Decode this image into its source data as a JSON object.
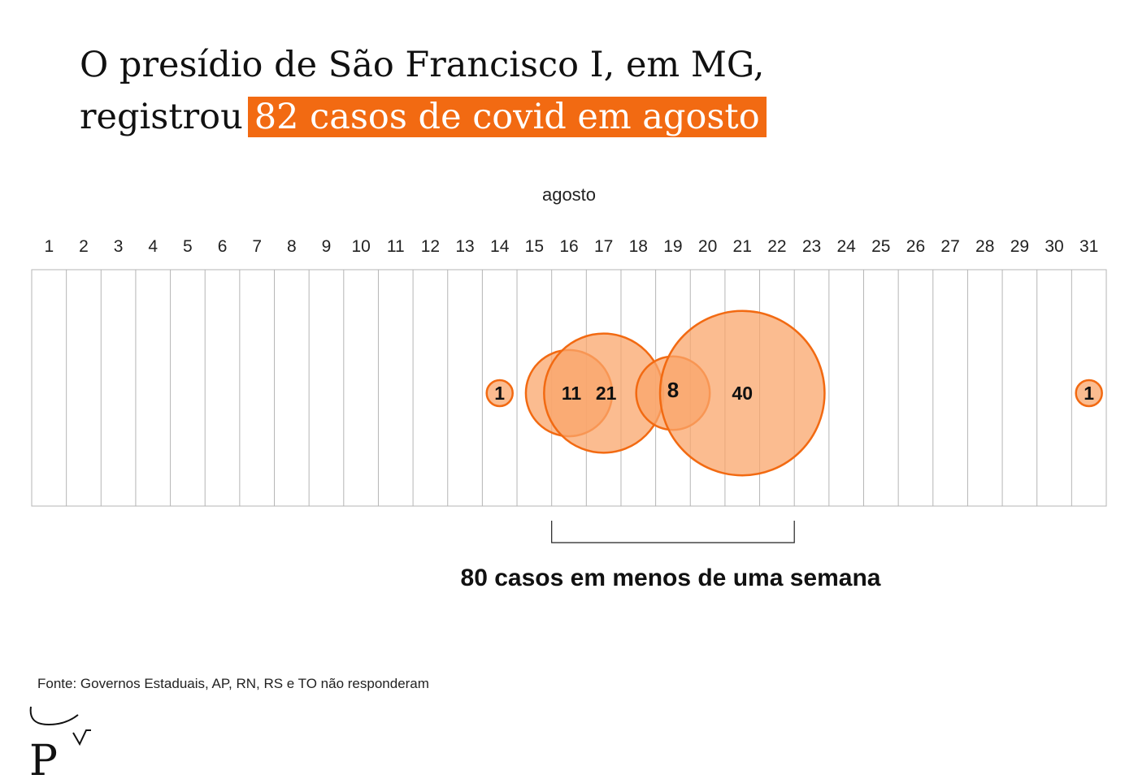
{
  "header": {
    "title_line1": "O presídio de São Francisco I, em MG,",
    "title_line2_prefix": "registrou",
    "title_highlight": "82 casos de covid em agosto"
  },
  "chart_data": {
    "type": "bubble-timeline",
    "month_label": "agosto",
    "days": [
      1,
      2,
      3,
      4,
      5,
      6,
      7,
      8,
      9,
      10,
      11,
      12,
      13,
      14,
      15,
      16,
      17,
      18,
      19,
      20,
      21,
      22,
      23,
      24,
      25,
      26,
      27,
      28,
      29,
      30,
      31
    ],
    "points": [
      {
        "day": 14,
        "cases": 1
      },
      {
        "day": 16,
        "cases": 11
      },
      {
        "day": 17,
        "cases": 21
      },
      {
        "day": 19,
        "cases": 8
      },
      {
        "day": 21,
        "cases": 40
      },
      {
        "day": 31,
        "cases": 1
      }
    ],
    "bracket": {
      "from_day": 16,
      "to_day": 22,
      "label": "80 casos em menos de uma semana"
    }
  },
  "colors": {
    "accent": "#f26a12",
    "bubble_fill": "#f9a56b",
    "grid": "#b5b5b5"
  },
  "footer": {
    "source": "Fonte: Governos Estaduais, AP, RN, RS e TO não responderam"
  },
  "logo": {
    "icon": "publication-logo-icon"
  }
}
